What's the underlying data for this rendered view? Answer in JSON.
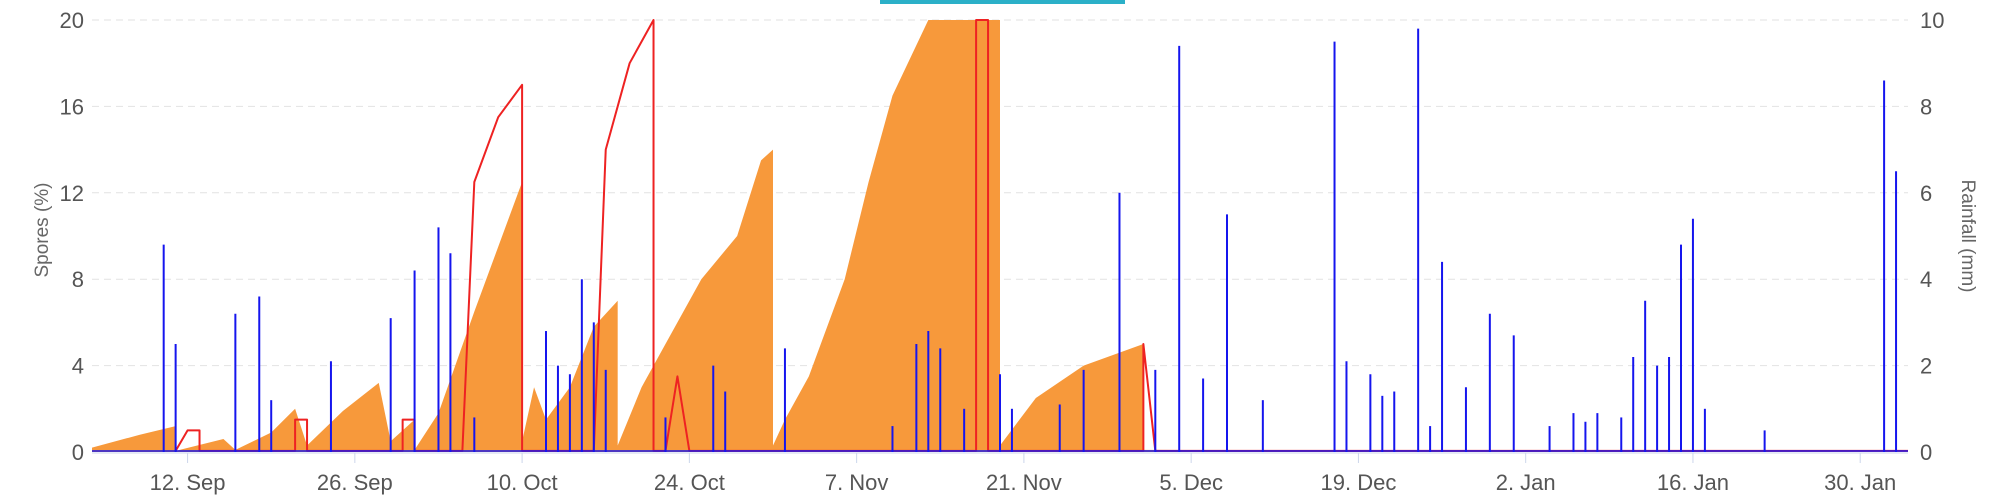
{
  "chart_data": {
    "type": "line",
    "title": "",
    "xlabel": "",
    "ylabel": "Spores (%)",
    "y2label": "Rainfall (mm)",
    "x_range": [
      "2024-09-01",
      "2025-01-31"
    ],
    "ylim": [
      0,
      20
    ],
    "y2lim": [
      0,
      10
    ],
    "grid": "horizontal dashed",
    "x_ticks": [
      {
        "date": "2024-09-09",
        "label": "12. Sep"
      },
      {
        "date": "2024-09-23",
        "label": "26. Sep"
      },
      {
        "date": "2024-10-07",
        "label": "10. Oct"
      },
      {
        "date": "2024-10-21",
        "label": "24. Oct"
      },
      {
        "date": "2024-11-04",
        "label": "7. Nov"
      },
      {
        "date": "2024-11-18",
        "label": "21. Nov"
      },
      {
        "date": "2024-12-02",
        "label": "5. Dec"
      },
      {
        "date": "2024-12-16",
        "label": "19. Dec"
      },
      {
        "date": "2024-12-30",
        "label": "2. Jan"
      },
      {
        "date": "2025-01-13",
        "label": "16. Jan"
      },
      {
        "date": "2025-01-27",
        "label": "30. Jan"
      }
    ],
    "y_ticks": [
      "0",
      "4",
      "8",
      "12",
      "16",
      "20"
    ],
    "y2_ticks": [
      "0",
      "2",
      "4",
      "6",
      "8",
      "10"
    ],
    "colors": {
      "area": "#f7993b",
      "spores_line": "#ee2222",
      "rain": "#1515ee",
      "grid": "#e2e2e2"
    },
    "series": [
      {
        "kind": "area",
        "axis": "left",
        "points": [
          [
            "2024-09-01",
            0.2
          ],
          [
            "2024-09-05",
            0.8
          ],
          [
            "2024-09-08",
            1.2
          ],
          [
            "2024-09-08",
            0.05
          ],
          [
            "2024-09-12",
            0.6
          ],
          [
            "2024-09-13",
            0.1
          ],
          [
            "2024-09-16",
            0.9
          ],
          [
            "2024-09-18",
            2.0
          ],
          [
            "2024-09-19",
            0.3
          ],
          [
            "2024-09-22",
            1.9
          ],
          [
            "2024-09-25",
            3.2
          ],
          [
            "2024-09-26",
            0.5
          ],
          [
            "2024-09-28",
            1.5
          ],
          [
            "2024-09-28",
            0.1
          ],
          [
            "2024-09-30",
            1.8
          ],
          [
            "2024-10-03",
            6.5
          ],
          [
            "2024-10-06",
            11.0
          ],
          [
            "2024-10-07",
            12.5
          ],
          [
            "2024-10-07",
            0.5
          ],
          [
            "2024-10-08",
            3.0
          ],
          [
            "2024-10-09",
            1.5
          ],
          [
            "2024-10-11",
            3.0
          ],
          [
            "2024-10-13",
            5.8
          ],
          [
            "2024-10-15",
            7.0
          ],
          [
            "2024-10-15",
            0.3
          ],
          [
            "2024-10-17",
            3.0
          ],
          [
            "2024-10-19",
            5.0
          ],
          [
            "2024-10-22",
            8.0
          ],
          [
            "2024-10-25",
            10.0
          ],
          [
            "2024-10-27",
            13.5
          ],
          [
            "2024-10-28",
            14.0
          ],
          [
            "2024-10-28",
            0.3
          ],
          [
            "2024-10-29",
            1.5
          ],
          [
            "2024-10-31",
            3.5
          ],
          [
            "2024-11-03",
            8.0
          ],
          [
            "2024-11-05",
            12.5
          ],
          [
            "2024-11-07",
            16.5
          ],
          [
            "2024-11-10",
            20.0
          ],
          [
            "2024-11-16",
            20.0
          ],
          [
            "2024-11-16",
            0.3
          ],
          [
            "2024-11-19",
            2.5
          ],
          [
            "2024-11-23",
            4.0
          ],
          [
            "2024-11-28",
            5.0
          ],
          [
            "2024-11-28",
            0.1
          ],
          [
            "2025-01-31",
            0.0
          ]
        ]
      },
      {
        "kind": "line",
        "axis": "left",
        "points": [
          [
            "2024-09-08",
            0.05
          ],
          [
            "2024-09-09",
            1.0
          ],
          [
            "2024-09-10",
            1.0
          ],
          [
            "2024-09-10",
            0.05
          ],
          [
            "2024-09-18",
            0.05
          ],
          [
            "2024-09-18",
            1.5
          ],
          [
            "2024-09-19",
            1.5
          ],
          [
            "2024-09-19",
            0.05
          ],
          [
            "2024-09-27",
            0.05
          ],
          [
            "2024-09-27",
            1.5
          ],
          [
            "2024-09-28",
            1.5
          ],
          [
            "2024-09-28",
            0.05
          ],
          [
            "2024-10-02",
            0.05
          ],
          [
            "2024-10-03",
            12.5
          ],
          [
            "2024-10-05",
            15.5
          ],
          [
            "2024-10-07",
            17.0
          ],
          [
            "2024-10-07",
            0.05
          ],
          [
            "2024-10-13",
            0.05
          ],
          [
            "2024-10-14",
            14.0
          ],
          [
            "2024-10-16",
            18.0
          ],
          [
            "2024-10-18",
            20.0
          ],
          [
            "2024-10-18",
            0.05
          ],
          [
            "2024-10-19",
            0.05
          ],
          [
            "2024-10-20",
            3.5
          ],
          [
            "2024-10-21",
            0.05
          ],
          [
            "2024-11-14",
            0.05
          ],
          [
            "2024-11-14",
            20.0
          ],
          [
            "2024-11-15",
            20.0
          ],
          [
            "2024-11-15",
            0.05
          ],
          [
            "2024-11-28",
            0.05
          ],
          [
            "2024-11-28",
            5.0
          ],
          [
            "2024-11-29",
            0.05
          ],
          [
            "2025-01-31",
            0.05
          ]
        ]
      },
      {
        "kind": "bars",
        "axis": "right",
        "points": [
          [
            "2024-09-07",
            4.8
          ],
          [
            "2024-09-08",
            2.5
          ],
          [
            "2024-09-13",
            3.2
          ],
          [
            "2024-09-15",
            3.6
          ],
          [
            "2024-09-16",
            1.2
          ],
          [
            "2024-09-21",
            2.1
          ],
          [
            "2024-09-26",
            3.1
          ],
          [
            "2024-09-28",
            4.2
          ],
          [
            "2024-09-30",
            5.2
          ],
          [
            "2024-10-01",
            4.6
          ],
          [
            "2024-10-03",
            0.8
          ],
          [
            "2024-10-09",
            2.8
          ],
          [
            "2024-10-10",
            2.0
          ],
          [
            "2024-10-11",
            1.8
          ],
          [
            "2024-10-12",
            4.0
          ],
          [
            "2024-10-13",
            3.0
          ],
          [
            "2024-10-14",
            1.9
          ],
          [
            "2024-10-19",
            0.8
          ],
          [
            "2024-10-23",
            2.0
          ],
          [
            "2024-10-24",
            1.4
          ],
          [
            "2024-10-29",
            2.4
          ],
          [
            "2024-11-07",
            0.6
          ],
          [
            "2024-11-09",
            2.5
          ],
          [
            "2024-11-10",
            2.8
          ],
          [
            "2024-11-11",
            2.4
          ],
          [
            "2024-11-13",
            1.0
          ],
          [
            "2024-11-16",
            1.8
          ],
          [
            "2024-11-17",
            1.0
          ],
          [
            "2024-11-21",
            1.1
          ],
          [
            "2024-11-23",
            1.9
          ],
          [
            "2024-11-26",
            6.0
          ],
          [
            "2024-11-29",
            1.9
          ],
          [
            "2024-12-01",
            9.4
          ],
          [
            "2024-12-03",
            1.7
          ],
          [
            "2024-12-05",
            5.5
          ],
          [
            "2024-12-08",
            1.2
          ],
          [
            "2024-12-14",
            9.5
          ],
          [
            "2024-12-15",
            2.1
          ],
          [
            "2024-12-17",
            1.8
          ],
          [
            "2024-12-18",
            1.3
          ],
          [
            "2024-12-19",
            1.4
          ],
          [
            "2024-12-21",
            9.8
          ],
          [
            "2024-12-22",
            0.6
          ],
          [
            "2024-12-23",
            4.4
          ],
          [
            "2024-12-25",
            1.5
          ],
          [
            "2024-12-27",
            3.2
          ],
          [
            "2024-12-29",
            2.7
          ],
          [
            "2025-01-01",
            0.6
          ],
          [
            "2025-01-03",
            0.9
          ],
          [
            "2025-01-04",
            0.7
          ],
          [
            "2025-01-05",
            0.9
          ],
          [
            "2025-01-07",
            0.8
          ],
          [
            "2025-01-08",
            2.2
          ],
          [
            "2025-01-09",
            3.5
          ],
          [
            "2025-01-10",
            2.0
          ],
          [
            "2025-01-11",
            2.2
          ],
          [
            "2025-01-12",
            4.8
          ],
          [
            "2025-01-13",
            5.4
          ],
          [
            "2025-01-14",
            1.0
          ],
          [
            "2025-01-19",
            0.5
          ],
          [
            "2025-01-29",
            8.6
          ],
          [
            "2025-01-30",
            6.5
          ]
        ]
      }
    ]
  }
}
